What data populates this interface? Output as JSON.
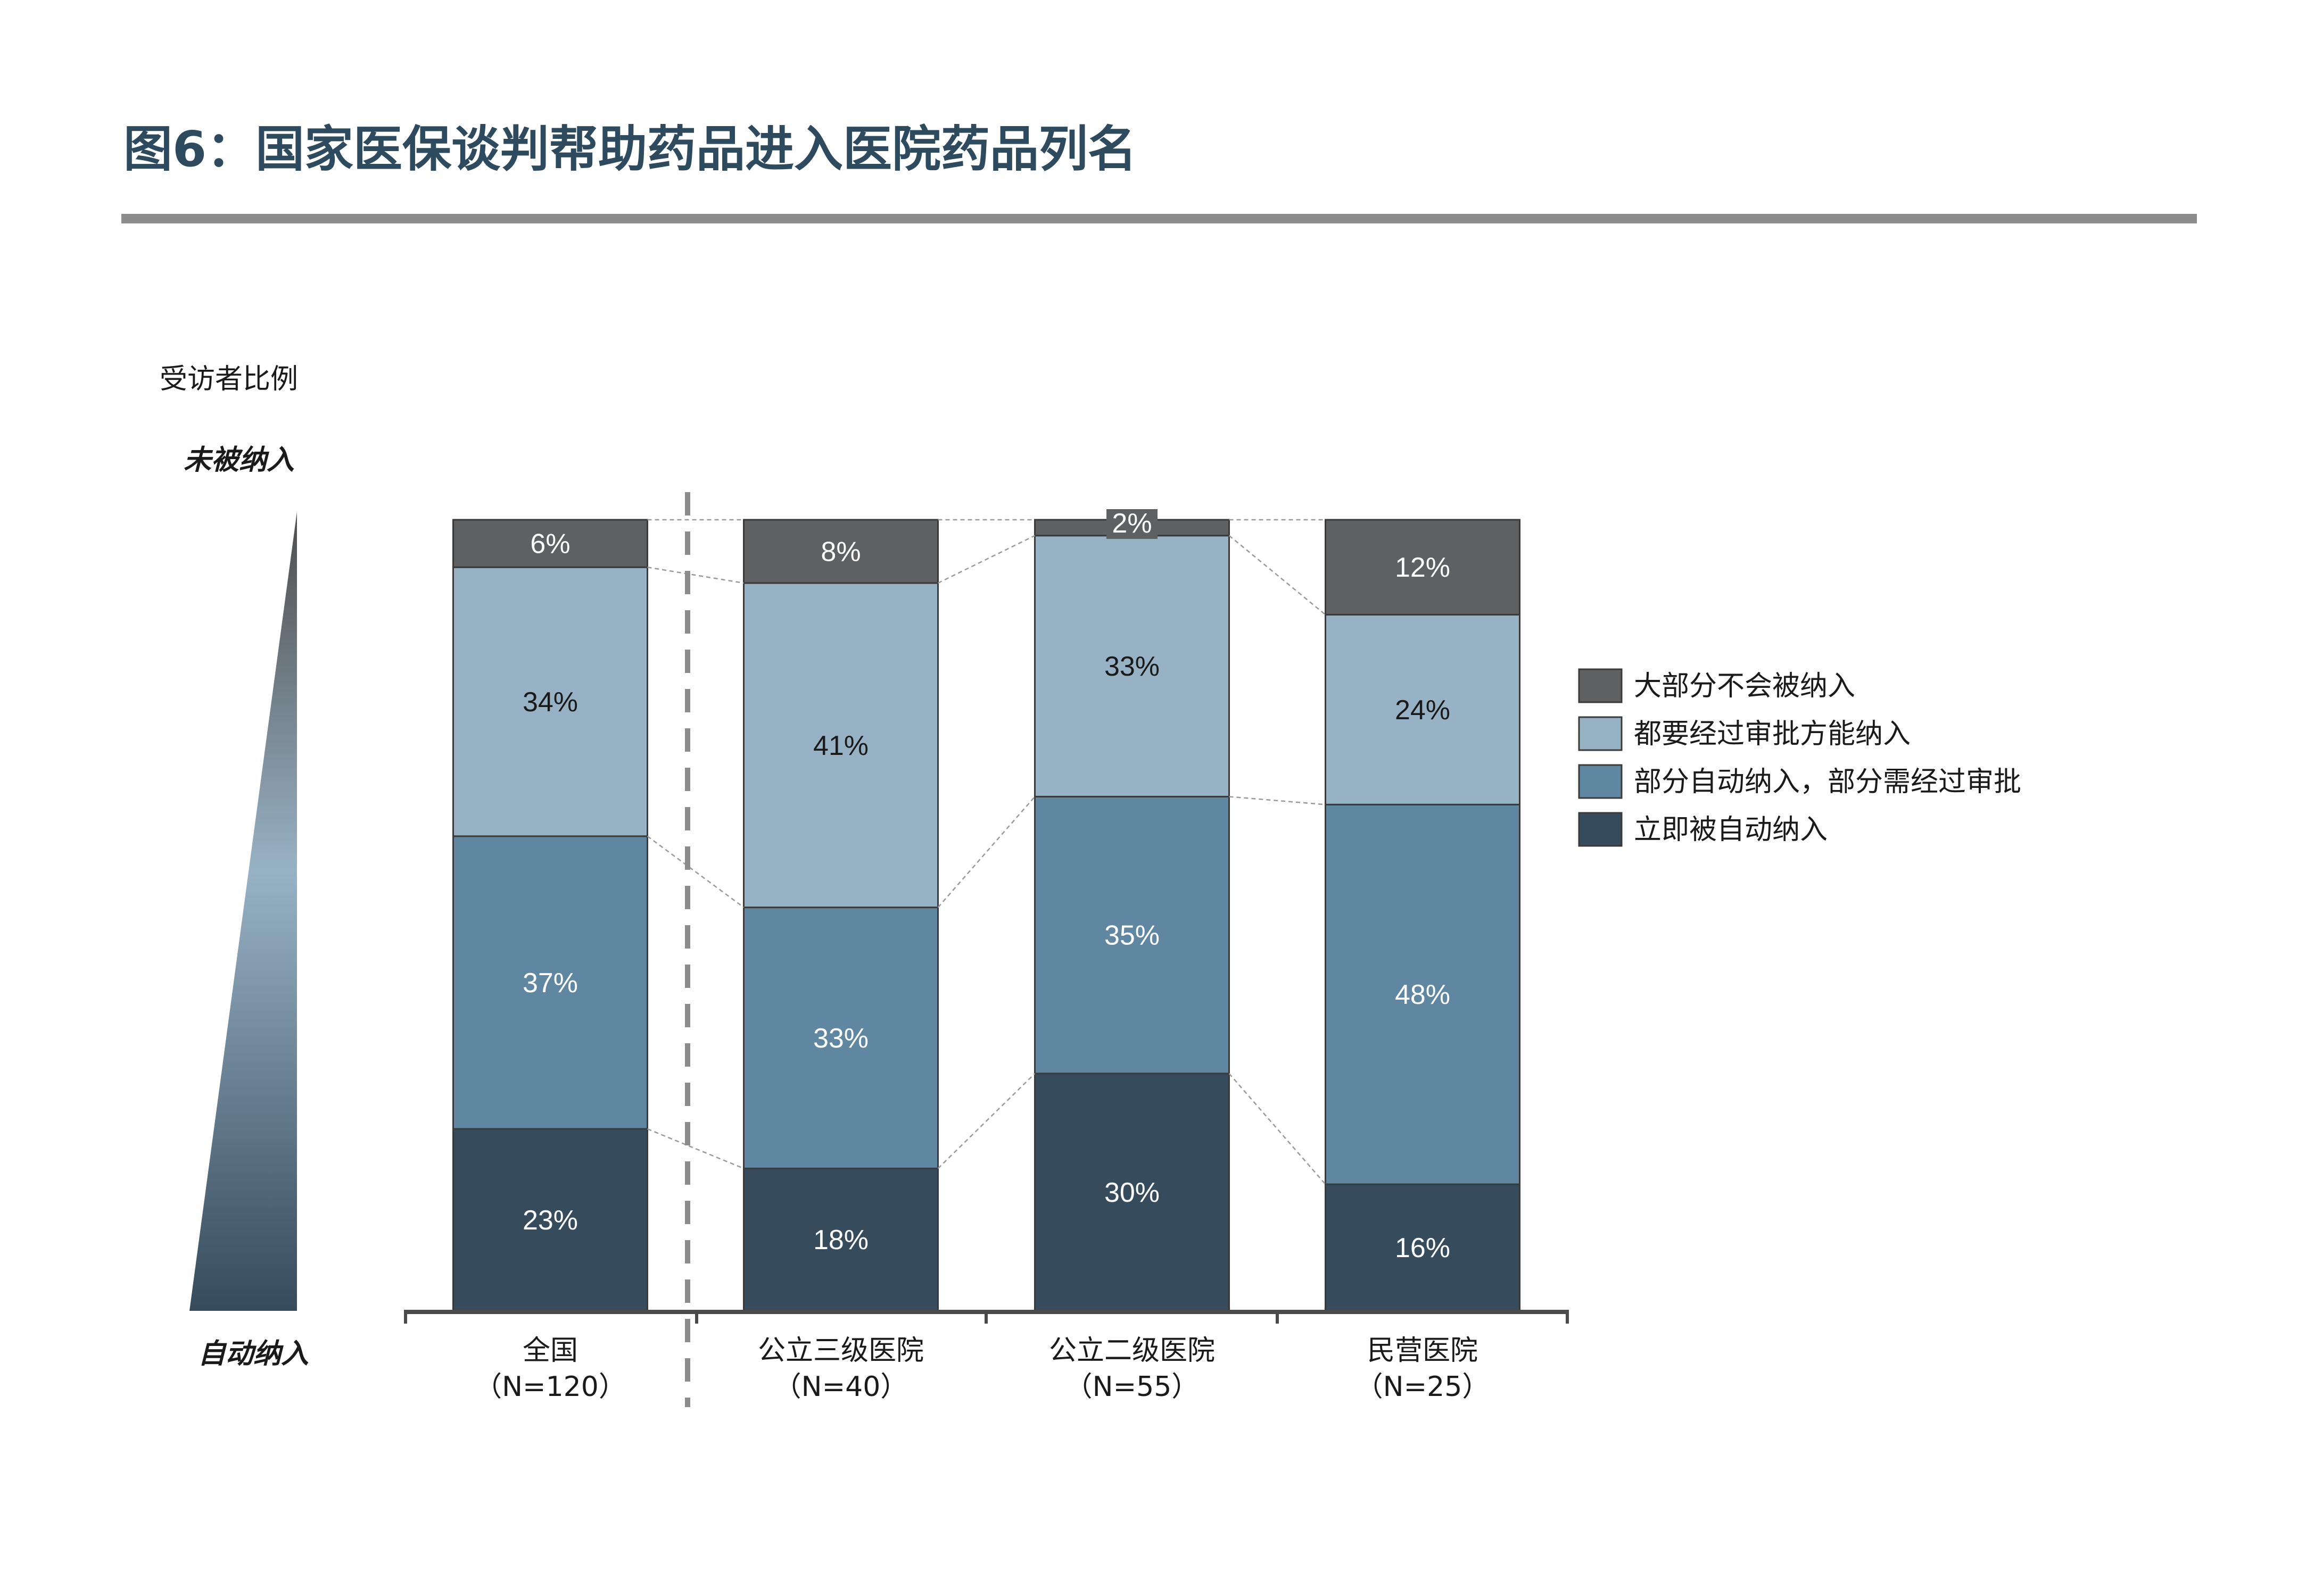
{
  "header": {
    "title": "图6：国家医保谈判帮助药品进入医院药品列名"
  },
  "ylabel": "受访者比例",
  "scale": {
    "top_label": "未被纳入",
    "bottom_label": "自动纳入"
  },
  "colors": {
    "title": "#2e4a5e",
    "rule": "#8c8c8c",
    "s_mostly_not": "#5f6062",
    "s_approval": "#98b2c5",
    "s_partial": "#5f87a2",
    "s_immediate": "#364b5c"
  },
  "chart_data": {
    "type": "bar",
    "stacked": true,
    "percent": true,
    "categories": [
      "全国",
      "公立三级医院",
      "公立二级医院",
      "民营医院"
    ],
    "category_n": [
      "（N=120）",
      "（N=40）",
      "（N=55）",
      "（N=25）"
    ],
    "ylim": [
      0,
      100
    ],
    "series": [
      {
        "name": "立即被自动纳入",
        "values": [
          23,
          18,
          30,
          16
        ],
        "color": "#364b5c",
        "label_color": "#ffffff"
      },
      {
        "name": "部分自动纳入，部分需经过审批",
        "values": [
          37,
          33,
          35,
          48
        ],
        "color": "#5f87a2",
        "label_color": "#ffffff"
      },
      {
        "name": "都要经过审批方能纳入",
        "values": [
          34,
          41,
          33,
          24
        ],
        "color": "#98b2c5",
        "label_color": "#1a1a1a"
      },
      {
        "name": "大部分不会被纳入",
        "values": [
          6,
          8,
          2,
          12
        ],
        "color": "#5f6062",
        "label_color": "#ffffff"
      }
    ],
    "legend_order": [
      "大部分不会被纳入",
      "都要经过审批方能纳入",
      "部分自动纳入，部分需经过审批",
      "立即被自动纳入"
    ],
    "legend_position": "right",
    "grid": false
  }
}
